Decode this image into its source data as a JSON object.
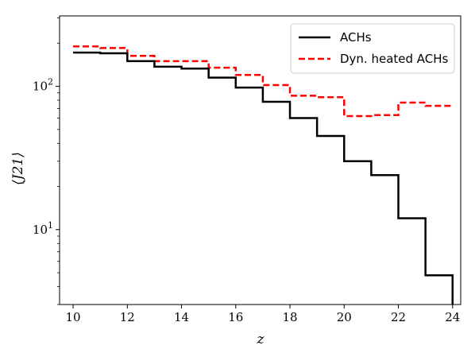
{
  "chart_data": {
    "type": "line",
    "step": true,
    "xlabel": "z",
    "ylabel": "⟨J21⟩",
    "xlim": [
      9.5,
      24.3
    ],
    "ylim": [
      3.0,
      310
    ],
    "yscale": "log",
    "grid": false,
    "legend_position": "top-right",
    "x_ticks": [
      10,
      12,
      14,
      16,
      18,
      20,
      22,
      24
    ],
    "y_ticks": [
      {
        "value": 10,
        "base": "10",
        "exp": "1"
      },
      {
        "value": 100,
        "base": "10",
        "exp": "2"
      }
    ],
    "x": [
      10,
      11,
      12,
      13,
      14,
      15,
      16,
      17,
      18,
      19,
      20,
      21,
      22,
      23,
      24
    ],
    "series": [
      {
        "name": "ACHs",
        "color": "#000000",
        "dash": "solid",
        "values": [
          172,
          170,
          150,
          137,
          133,
          115,
          98,
          78,
          60,
          45,
          30,
          24,
          12,
          4.8,
          3.0
        ]
      },
      {
        "name": "Dyn. heated ACHs",
        "color": "#ff0000",
        "dash": "dashed",
        "values": [
          190,
          185,
          163,
          150,
          150,
          135,
          120,
          102,
          86,
          84,
          62,
          63,
          77,
          73,
          73
        ]
      }
    ]
  }
}
